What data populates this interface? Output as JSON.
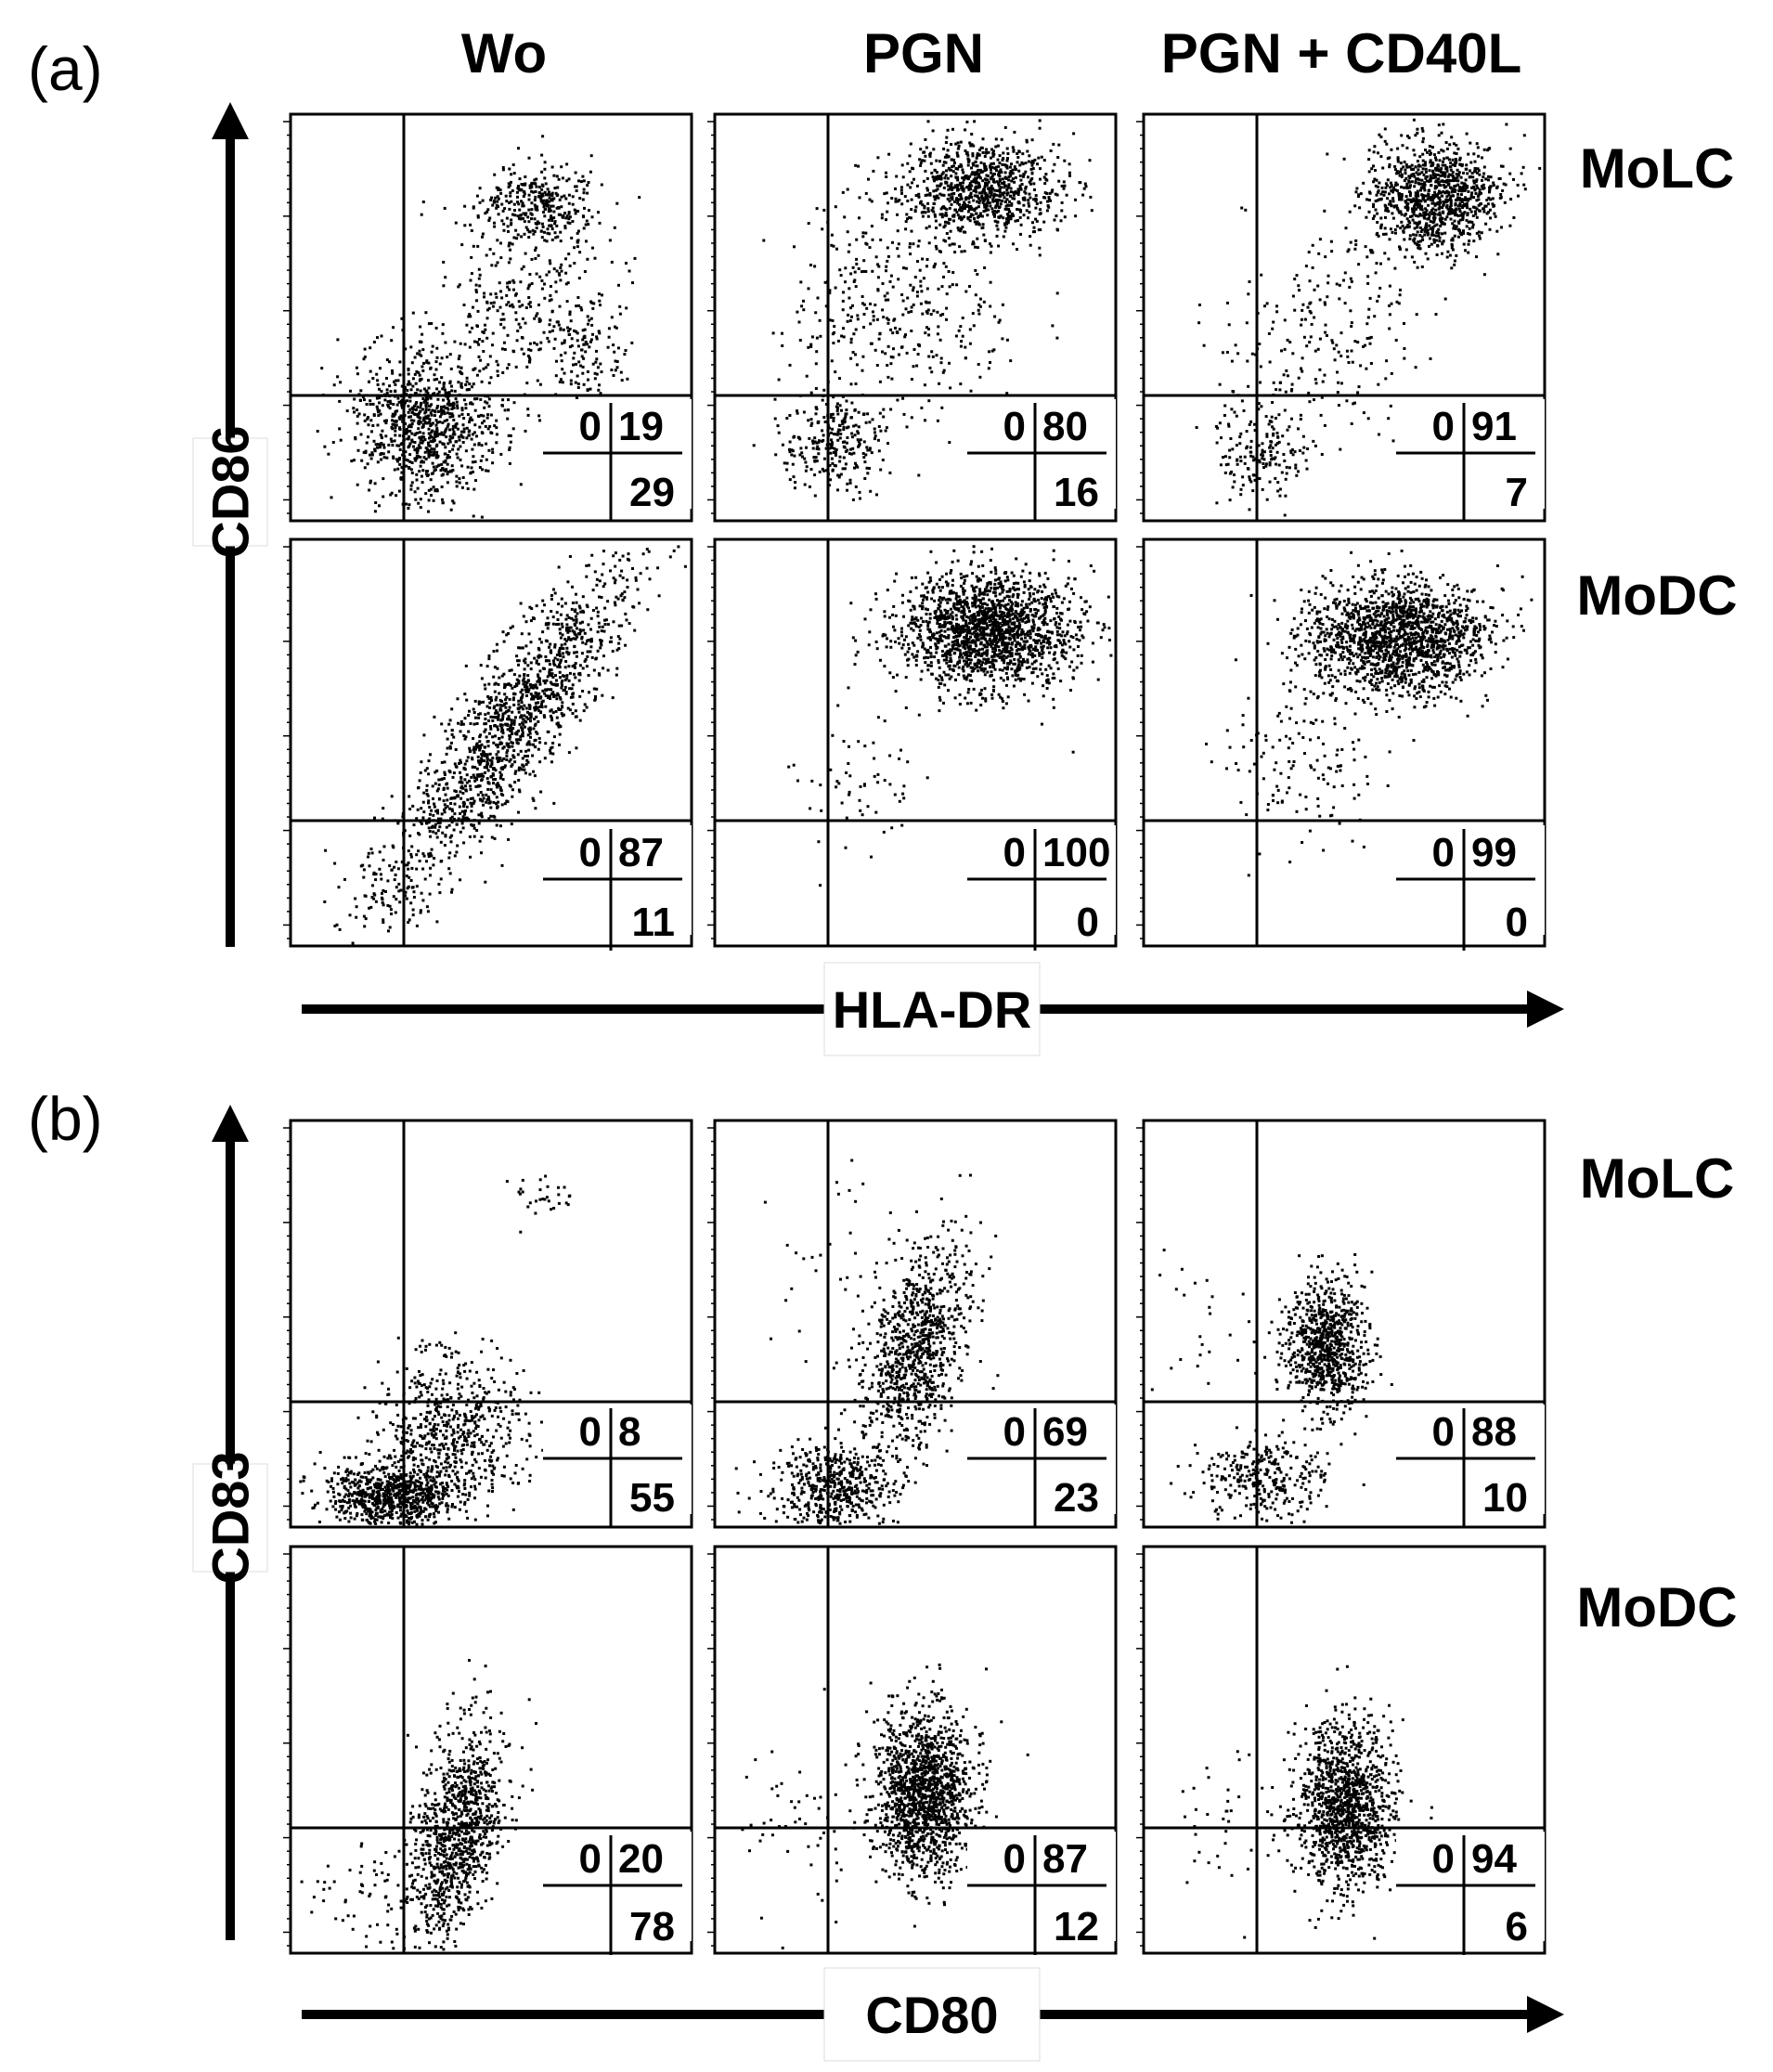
{
  "figure": {
    "panel_labels": [
      "(a)",
      "(b)"
    ],
    "column_headers": [
      "Wo",
      "PGN",
      "PGN + CD40L"
    ],
    "row_headers": [
      "MoLC",
      "MoDC"
    ],
    "colors": {
      "ink": "#000000",
      "background": "#ffffff"
    }
  },
  "chart_data": [
    {
      "type": "scatter",
      "panel": "(a)",
      "xlabel": "HLA-DR",
      "ylabel": "CD86",
      "columns": [
        "Wo",
        "PGN",
        "PGN + CD40L"
      ],
      "rows": [
        "MoLC",
        "MoDC"
      ],
      "quadrant_layout": [
        "upper-left",
        "upper-right",
        "lower-right"
      ],
      "plots": [
        {
          "row": "MoLC",
          "column": "Wo",
          "quadrants": [
            "0",
            "19",
            "29"
          ]
        },
        {
          "row": "MoLC",
          "column": "PGN",
          "quadrants": [
            "0",
            "80",
            "16"
          ]
        },
        {
          "row": "MoLC",
          "column": "PGN + CD40L",
          "quadrants": [
            "0",
            "91",
            "7"
          ]
        },
        {
          "row": "MoDC",
          "column": "Wo",
          "quadrants": [
            "0",
            "87",
            "11"
          ]
        },
        {
          "row": "MoDC",
          "column": "PGN",
          "quadrants": [
            "0",
            "100",
            "0"
          ]
        },
        {
          "row": "MoDC",
          "column": "PGN + CD40L",
          "quadrants": [
            "0",
            "99",
            "0"
          ]
        }
      ]
    },
    {
      "type": "scatter",
      "panel": "(b)",
      "xlabel": "CD80",
      "ylabel": "CD83",
      "columns": [
        "Wo",
        "PGN",
        "PGN + CD40L"
      ],
      "rows": [
        "MoLC",
        "MoDC"
      ],
      "quadrant_layout": [
        "upper-left",
        "upper-right",
        "lower-right"
      ],
      "plots": [
        {
          "row": "MoLC",
          "column": "Wo",
          "quadrants": [
            "0",
            "8",
            "55"
          ]
        },
        {
          "row": "MoLC",
          "column": "PGN",
          "quadrants": [
            "0",
            "69",
            "23"
          ]
        },
        {
          "row": "MoLC",
          "column": "PGN + CD40L",
          "quadrants": [
            "0",
            "88",
            "10"
          ]
        },
        {
          "row": "MoDC",
          "column": "Wo",
          "quadrants": [
            "0",
            "20",
            "78"
          ]
        },
        {
          "row": "MoDC",
          "column": "PGN",
          "quadrants": [
            "0",
            "87",
            "12"
          ]
        },
        {
          "row": "MoDC",
          "column": "PGN + CD40L",
          "quadrants": [
            "0",
            "94",
            "6"
          ]
        }
      ]
    }
  ]
}
